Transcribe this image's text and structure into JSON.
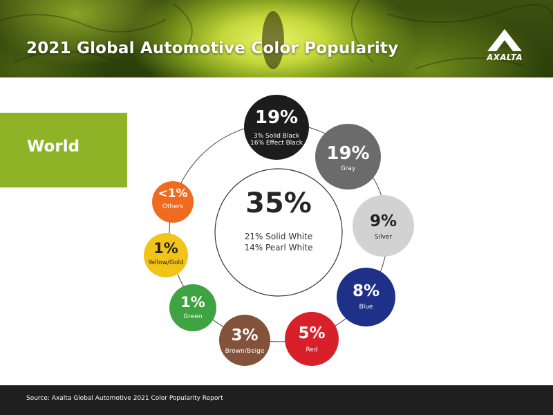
{
  "header": {
    "title": "2021 Global Automotive Color Popularity",
    "logo_text": "AXALTA"
  },
  "region": {
    "label": "World"
  },
  "center": {
    "value": "35%",
    "line1": "21% Solid White",
    "line2": "14% Pearl White",
    "color": "#ffffff"
  },
  "chart_data": {
    "type": "bubble-ring",
    "title": "2021 Global Automotive Color Popularity",
    "region": "World",
    "center": {
      "label": "White",
      "value": 35,
      "display": "35%",
      "breakdown": [
        "21% Solid White",
        "14% Pearl White"
      ],
      "color": "#ffffff"
    },
    "segments": [
      {
        "label": "Black",
        "value": 19,
        "display": "19%",
        "detail": [
          "3% Solid Black",
          "16% Effect Black"
        ],
        "color": "#1c1c1c"
      },
      {
        "label": "Gray",
        "value": 19,
        "display": "19%",
        "detail": [
          "Gray"
        ],
        "color": "#6b6b6b"
      },
      {
        "label": "Silver",
        "value": 9,
        "display": "9%",
        "detail": [
          "Silver"
        ],
        "color": "#d2d2d2"
      },
      {
        "label": "Blue",
        "value": 8,
        "display": "8%",
        "detail": [
          "Blue"
        ],
        "color": "#1f3088"
      },
      {
        "label": "Red",
        "value": 5,
        "display": "5%",
        "detail": [
          "Red"
        ],
        "color": "#d8202a"
      },
      {
        "label": "Brown/Beige",
        "value": 3,
        "display": "3%",
        "detail": [
          "Brown/Beige"
        ],
        "color": "#82523a"
      },
      {
        "label": "Green",
        "value": 1,
        "display": "1%",
        "detail": [
          "Green"
        ],
        "color": "#3ea341"
      },
      {
        "label": "Yellow/Gold",
        "value": 1,
        "display": "1%",
        "detail": [
          "Yellow/Gold"
        ],
        "color": "#f2c318"
      },
      {
        "label": "Others",
        "value": 0.5,
        "display": "<1%",
        "detail": [
          "Others"
        ],
        "color": "#ef6b1f"
      }
    ]
  },
  "footer": {
    "source": "Source: Axalta Global Automotive 2021 Color Popularity Report"
  }
}
